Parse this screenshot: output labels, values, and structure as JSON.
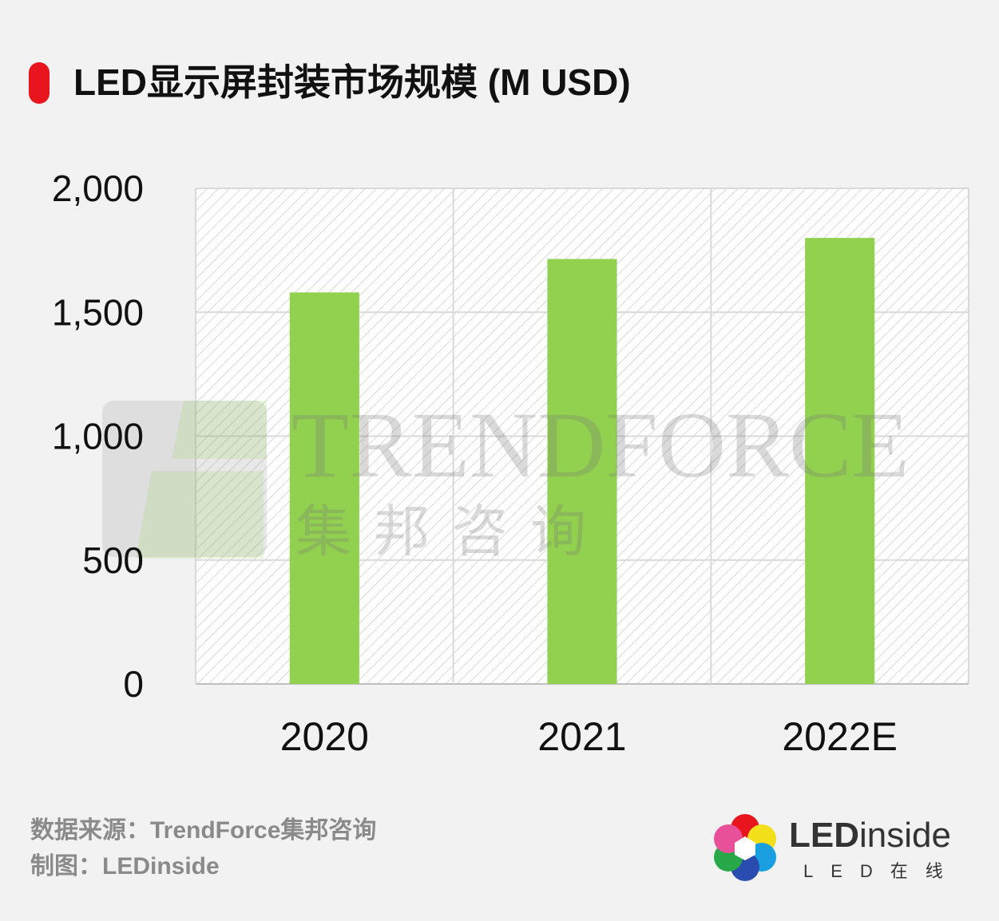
{
  "title": "LED显示屏封装市场规模 (M USD)",
  "footer": {
    "source": "数据来源：TrendForce集邦咨询",
    "made_by": "制图：LEDinside"
  },
  "logo": {
    "name_bold": "LED",
    "name_light": "inside",
    "sub": "LED在线"
  },
  "watermark": {
    "text": "TRENDFORCE",
    "sub": "集邦咨询"
  },
  "colors": {
    "bar": "#92d050",
    "accent": "#e8141e",
    "background": "#f2f2f2"
  },
  "chart_data": {
    "type": "bar",
    "categories": [
      "2020",
      "2021",
      "2022E"
    ],
    "values": [
      1580,
      1715,
      1800
    ],
    "y_ticks": [
      "0",
      "500",
      "1,000",
      "1,500",
      "2,000"
    ],
    "ylim": [
      0,
      2000
    ],
    "grid": true,
    "legend": "none"
  }
}
